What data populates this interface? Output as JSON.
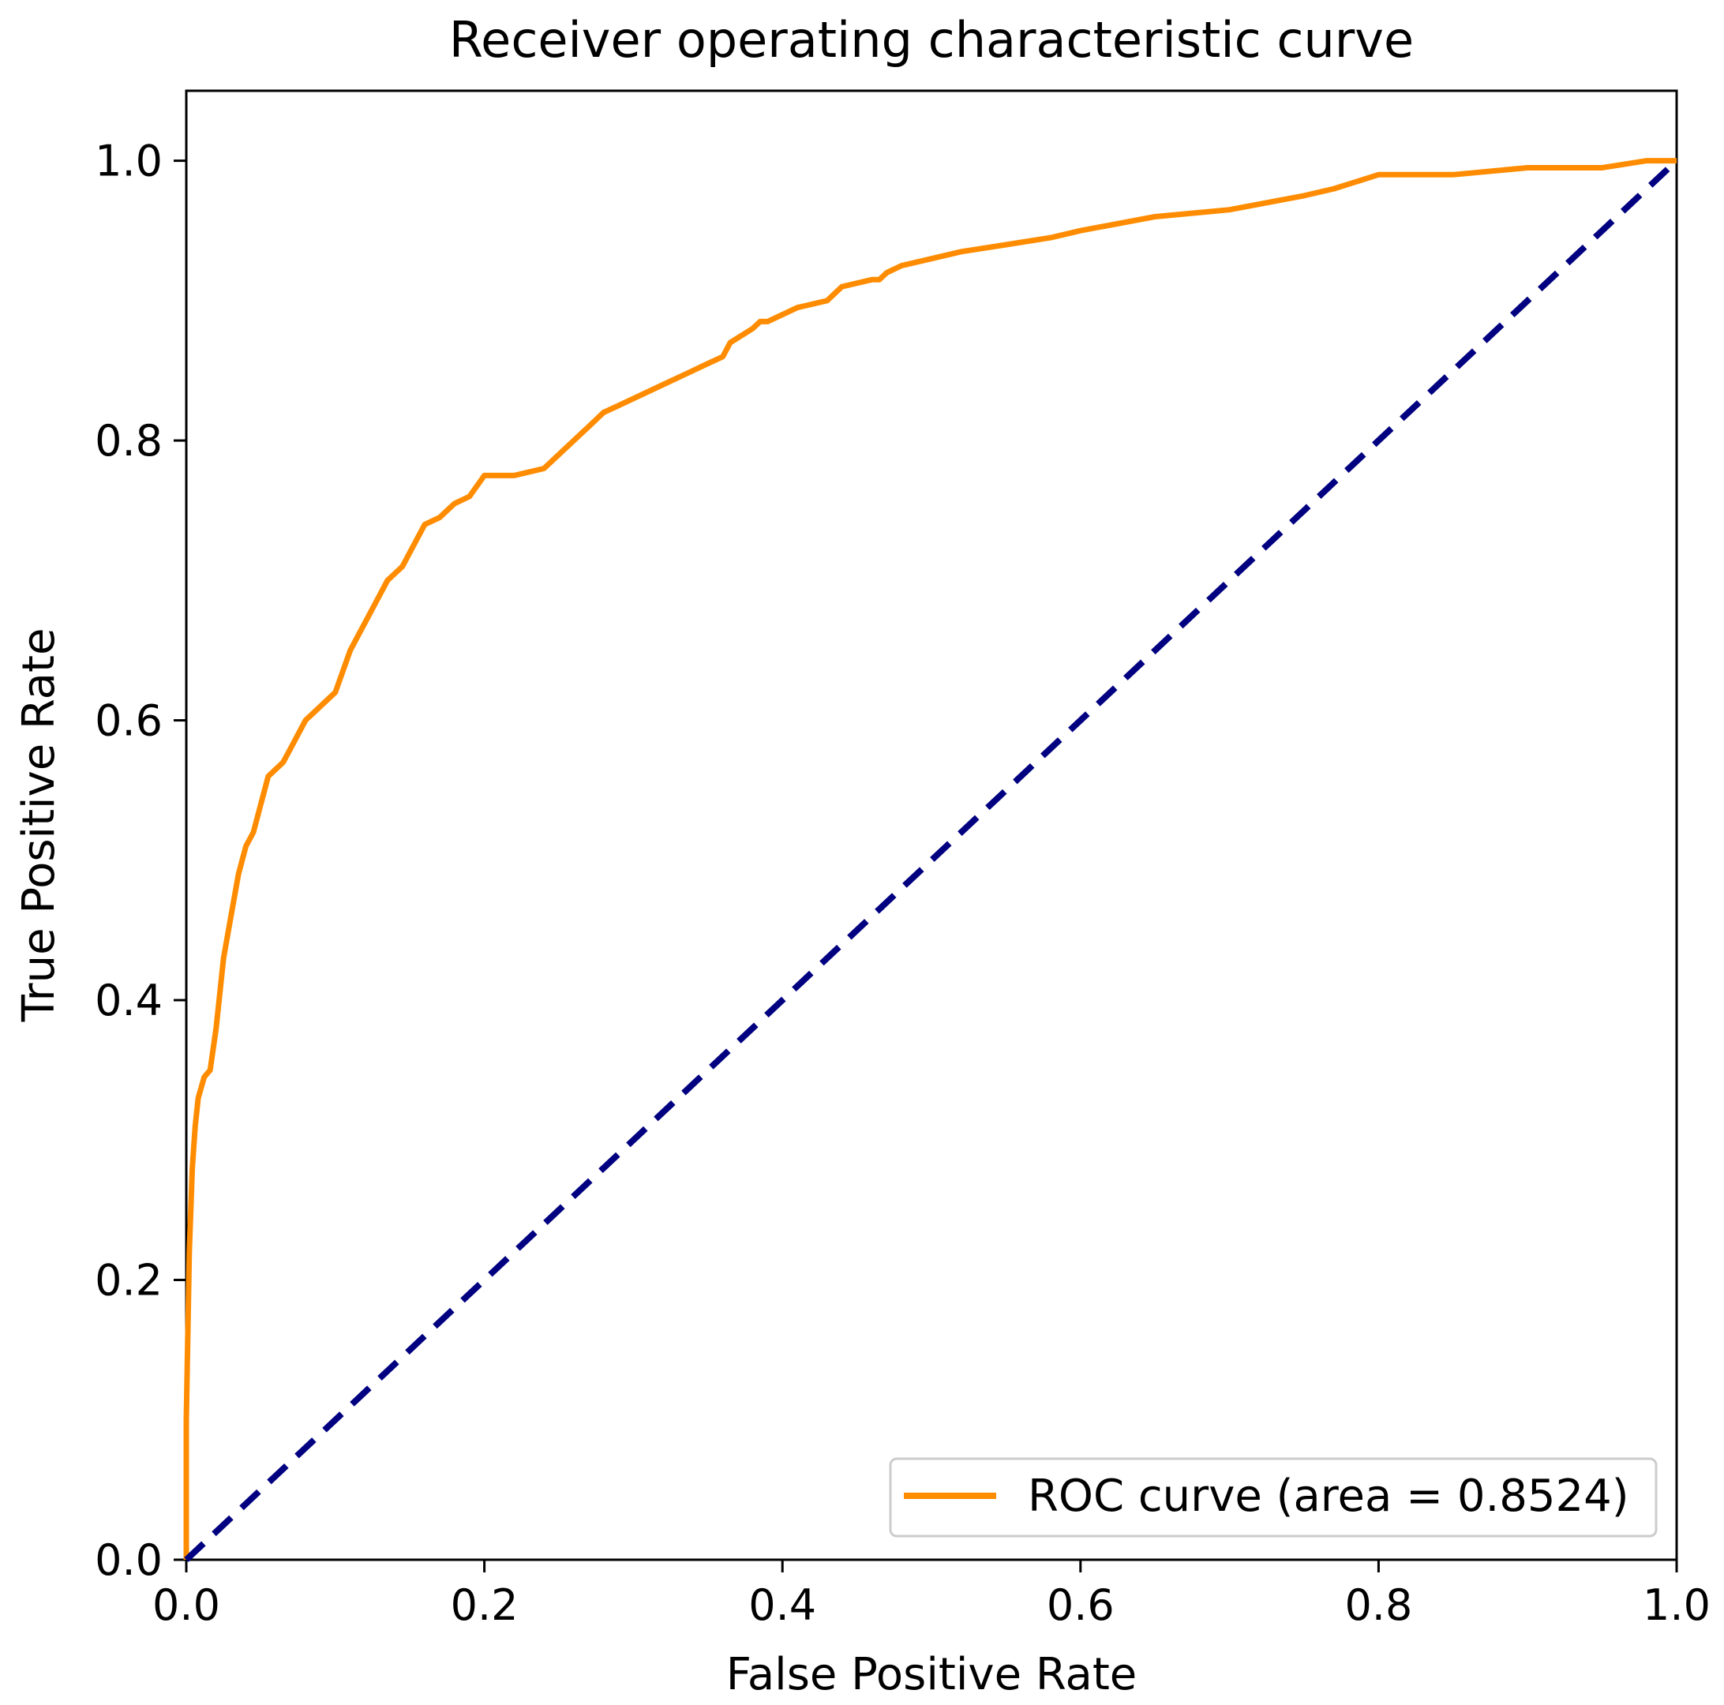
{
  "chart_data": {
    "type": "line",
    "title": "Receiver operating characteristic curve",
    "xlabel": "False Positive Rate",
    "ylabel": "True Positive Rate",
    "xlim": [
      0.0,
      1.0
    ],
    "ylim": [
      0.0,
      1.05
    ],
    "x_ticks": [
      "0.0",
      "0.2",
      "0.4",
      "0.6",
      "0.8",
      "1.0"
    ],
    "y_ticks": [
      "0.0",
      "0.2",
      "0.4",
      "0.6",
      "0.8",
      "1.0"
    ],
    "grid": false,
    "legend_position": "lower-right",
    "series": [
      {
        "name": "ROC curve (area = 0.8524)",
        "color": "#ff8c00",
        "style": "solid",
        "x": [
          0.0,
          0.0,
          0.002,
          0.004,
          0.006,
          0.008,
          0.012,
          0.016,
          0.02,
          0.025,
          0.03,
          0.035,
          0.04,
          0.045,
          0.05,
          0.055,
          0.06,
          0.065,
          0.07,
          0.08,
          0.085,
          0.09,
          0.1,
          0.11,
          0.115,
          0.12,
          0.13,
          0.135,
          0.14,
          0.145,
          0.15,
          0.16,
          0.17,
          0.175,
          0.18,
          0.19,
          0.2,
          0.21,
          0.215,
          0.22,
          0.24,
          0.25,
          0.26,
          0.27,
          0.275,
          0.28,
          0.29,
          0.3,
          0.32,
          0.34,
          0.35,
          0.36,
          0.365,
          0.38,
          0.385,
          0.39,
          0.4,
          0.41,
          0.43,
          0.44,
          0.46,
          0.465,
          0.47,
          0.48,
          0.5,
          0.52,
          0.55,
          0.58,
          0.6,
          0.65,
          0.7,
          0.75,
          0.77,
          0.8,
          0.85,
          0.9,
          0.95,
          0.98,
          1.0
        ],
        "y": [
          0.0,
          0.1,
          0.22,
          0.28,
          0.31,
          0.33,
          0.345,
          0.35,
          0.38,
          0.43,
          0.46,
          0.49,
          0.51,
          0.52,
          0.54,
          0.56,
          0.565,
          0.57,
          0.58,
          0.6,
          0.605,
          0.61,
          0.62,
          0.65,
          0.66,
          0.67,
          0.69,
          0.7,
          0.705,
          0.71,
          0.72,
          0.74,
          0.745,
          0.75,
          0.755,
          0.76,
          0.775,
          0.775,
          0.775,
          0.775,
          0.78,
          0.79,
          0.8,
          0.81,
          0.815,
          0.82,
          0.825,
          0.83,
          0.84,
          0.85,
          0.855,
          0.86,
          0.87,
          0.88,
          0.885,
          0.885,
          0.89,
          0.895,
          0.9,
          0.91,
          0.915,
          0.915,
          0.92,
          0.925,
          0.93,
          0.935,
          0.94,
          0.945,
          0.95,
          0.96,
          0.965,
          0.975,
          0.98,
          0.99,
          0.99,
          0.995,
          0.995,
          1.0,
          1.0
        ]
      },
      {
        "name": "",
        "color": "#000080",
        "style": "dashed",
        "x": [
          0.0,
          1.0
        ],
        "y": [
          0.0,
          1.0
        ]
      }
    ],
    "legend": {
      "label": "ROC curve (area = 0.8524)"
    }
  }
}
